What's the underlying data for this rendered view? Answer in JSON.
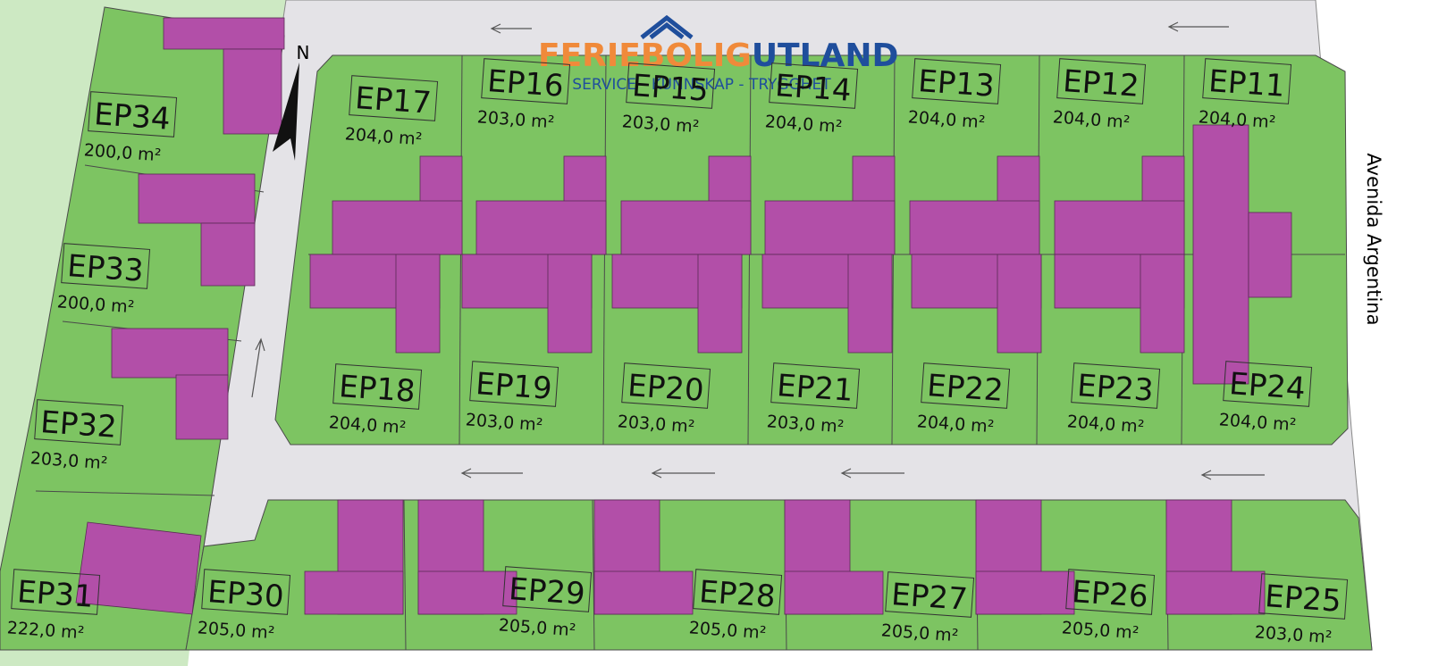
{
  "logo": {
    "brand_primary": "FERIEBOLIG",
    "brand_secondary": "UTLAND",
    "tagline": "SERVICE - KUNNSKAP - TRYGGHET"
  },
  "compass": "N",
  "street": "Avenida Argentina",
  "plots": [
    {
      "id": "EP11",
      "area": "204,0 m²"
    },
    {
      "id": "EP12",
      "area": "204,0 m²"
    },
    {
      "id": "EP13",
      "area": "204,0 m²"
    },
    {
      "id": "EP14",
      "area": "204,0 m²"
    },
    {
      "id": "EP15",
      "area": "203,0 m²"
    },
    {
      "id": "EP16",
      "area": "203,0 m²"
    },
    {
      "id": "EP17",
      "area": "204,0 m²"
    },
    {
      "id": "EP18",
      "area": "204,0 m²"
    },
    {
      "id": "EP19",
      "area": "203,0 m²"
    },
    {
      "id": "EP20",
      "area": "203,0 m²"
    },
    {
      "id": "EP21",
      "area": "203,0 m²"
    },
    {
      "id": "EP22",
      "area": "204,0 m²"
    },
    {
      "id": "EP23",
      "area": "204,0 m²"
    },
    {
      "id": "EP24",
      "area": "204,0 m²"
    },
    {
      "id": "EP25",
      "area": "203,0 m²"
    },
    {
      "id": "EP26",
      "area": "205,0 m²"
    },
    {
      "id": "EP27",
      "area": "205,0 m²"
    },
    {
      "id": "EP28",
      "area": "205,0 m²"
    },
    {
      "id": "EP29",
      "area": "205,0 m²"
    },
    {
      "id": "EP30",
      "area": "205,0 m²"
    },
    {
      "id": "EP31",
      "area": "222,0 m²"
    },
    {
      "id": "EP32",
      "area": "203,0 m²"
    },
    {
      "id": "EP33",
      "area": "200,0 m²"
    },
    {
      "id": "EP34",
      "area": "200,0 m²"
    }
  ]
}
